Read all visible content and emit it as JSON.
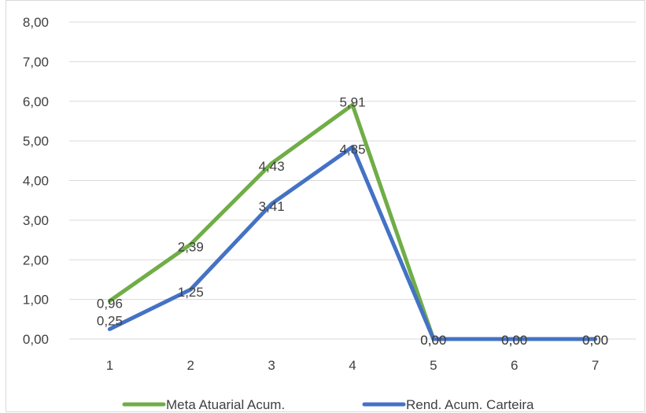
{
  "chart_data": {
    "type": "line",
    "categories": [
      "1",
      "2",
      "3",
      "4",
      "5",
      "6",
      "7"
    ],
    "ylim": [
      0,
      8
    ],
    "y_ticks": [
      "0,00",
      "1,00",
      "2,00",
      "3,00",
      "4,00",
      "5,00",
      "6,00",
      "7,00",
      "8,00"
    ],
    "grid": true,
    "legend_position": "bottom",
    "series": [
      {
        "name": "Meta Atuarial Acum.",
        "color": "#70ad47",
        "values": [
          0.96,
          2.39,
          4.43,
          5.91,
          0,
          0,
          0
        ],
        "labels": [
          "0,96",
          "2,39",
          "4,43",
          "5,91",
          "0,00",
          "0,00",
          "0,00"
        ]
      },
      {
        "name": "Rend. Acum. Carteira",
        "color": "#4472c4",
        "values": [
          0.25,
          1.25,
          3.41,
          4.85,
          0,
          0,
          0
        ],
        "labels": [
          "0,25",
          "1,25",
          "3,41",
          "4,85",
          "0,00",
          "0,00",
          "0,00"
        ]
      }
    ]
  }
}
